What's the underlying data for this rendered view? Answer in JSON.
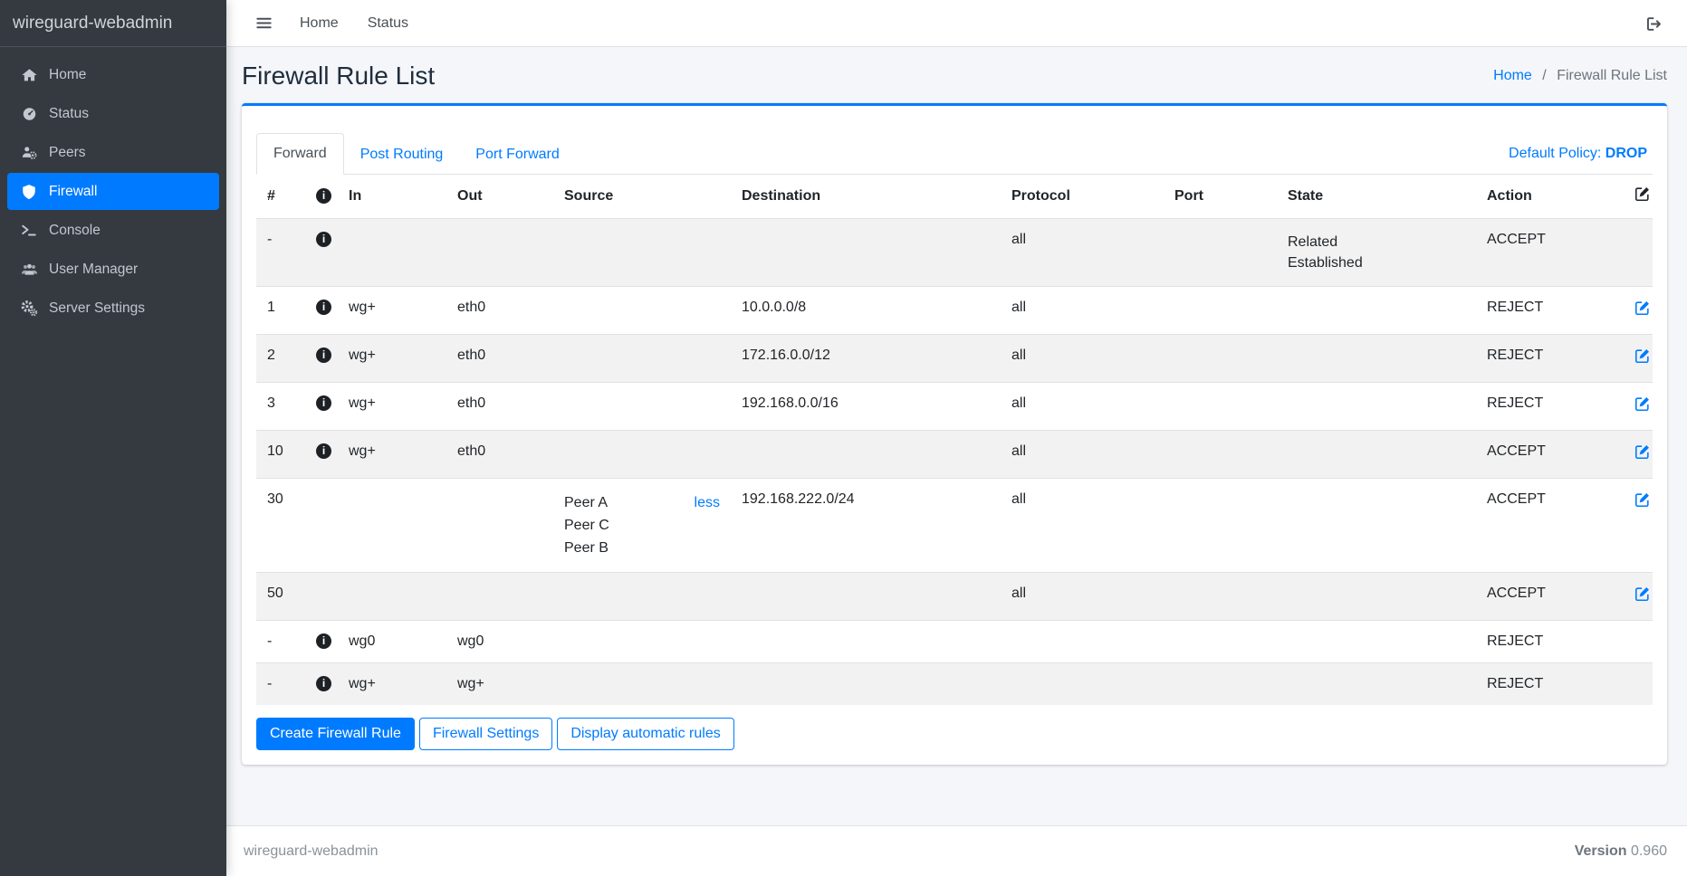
{
  "sidebar": {
    "brand": "wireguard-webadmin",
    "items": [
      {
        "label": "Home",
        "icon": "home-icon",
        "active": false
      },
      {
        "label": "Status",
        "icon": "status-icon",
        "active": false
      },
      {
        "label": "Peers",
        "icon": "peers-icon",
        "active": false
      },
      {
        "label": "Firewall",
        "icon": "firewall-icon",
        "active": true
      },
      {
        "label": "Console",
        "icon": "console-icon",
        "active": false
      },
      {
        "label": "User Manager",
        "icon": "user-manager-icon",
        "active": false
      },
      {
        "label": "Server Settings",
        "icon": "server-settings-icon",
        "active": false
      }
    ]
  },
  "navbar": {
    "links": [
      "Home",
      "Status"
    ]
  },
  "page": {
    "title": "Firewall Rule List",
    "breadcrumb": {
      "home": "Home",
      "separator": "/",
      "current": "Firewall Rule List"
    }
  },
  "tabs": {
    "items": [
      "Forward",
      "Post Routing",
      "Port Forward"
    ],
    "active": "Forward",
    "default_policy_label": "Default Policy:",
    "default_policy_value": "DROP"
  },
  "table": {
    "headers": [
      "#",
      "",
      "In",
      "Out",
      "Source",
      "Destination",
      "Protocol",
      "Port",
      "State",
      "Action",
      ""
    ],
    "rows": [
      {
        "id": "-",
        "info": true,
        "in": "",
        "out": "",
        "source": [],
        "source_toggle": "",
        "destination": "",
        "protocol": "all",
        "port": "",
        "state": [
          "Related",
          "Established"
        ],
        "action": "ACCEPT",
        "edit": false
      },
      {
        "id": "1",
        "info": true,
        "in": "wg+",
        "out": "eth0",
        "source": [],
        "source_toggle": "",
        "destination": "10.0.0.0/8",
        "protocol": "all",
        "port": "",
        "state": [],
        "action": "REJECT",
        "edit": true
      },
      {
        "id": "2",
        "info": true,
        "in": "wg+",
        "out": "eth0",
        "source": [],
        "source_toggle": "",
        "destination": "172.16.0.0/12",
        "protocol": "all",
        "port": "",
        "state": [],
        "action": "REJECT",
        "edit": true
      },
      {
        "id": "3",
        "info": true,
        "in": "wg+",
        "out": "eth0",
        "source": [],
        "source_toggle": "",
        "destination": "192.168.0.0/16",
        "protocol": "all",
        "port": "",
        "state": [],
        "action": "REJECT",
        "edit": true
      },
      {
        "id": "10",
        "info": true,
        "in": "wg+",
        "out": "eth0",
        "source": [],
        "source_toggle": "",
        "destination": "",
        "protocol": "all",
        "port": "",
        "state": [],
        "action": "ACCEPT",
        "edit": true
      },
      {
        "id": "30",
        "info": false,
        "in": "",
        "out": "",
        "source": [
          "Peer A",
          "Peer C",
          "Peer B"
        ],
        "source_toggle": "less",
        "destination": "192.168.222.0/24",
        "protocol": "all",
        "port": "",
        "state": [],
        "action": "ACCEPT",
        "edit": true
      },
      {
        "id": "50",
        "info": false,
        "in": "",
        "out": "",
        "source": [],
        "source_toggle": "",
        "destination": "",
        "protocol": "all",
        "port": "",
        "state": [],
        "action": "ACCEPT",
        "edit": true
      },
      {
        "id": "-",
        "info": true,
        "in": "wg0",
        "out": "wg0",
        "source": [],
        "source_toggle": "",
        "destination": "",
        "protocol": "",
        "port": "",
        "state": [],
        "action": "REJECT",
        "edit": false
      },
      {
        "id": "-",
        "info": true,
        "in": "wg+",
        "out": "wg+",
        "source": [],
        "source_toggle": "",
        "destination": "",
        "protocol": "",
        "port": "",
        "state": [],
        "action": "REJECT",
        "edit": false
      }
    ]
  },
  "actions": [
    {
      "label": "Create Firewall Rule",
      "style": "primary"
    },
    {
      "label": "Firewall Settings",
      "style": "outline"
    },
    {
      "label": "Display automatic rules",
      "style": "outline"
    }
  ],
  "footer": {
    "left": "wireguard-webadmin",
    "version_label": "Version",
    "version_value": "0.960"
  },
  "colors": {
    "primary": "#007bff",
    "sidebar_bg": "#343a40",
    "content_bg": "#f4f6f9",
    "border": "#dee2e6"
  }
}
